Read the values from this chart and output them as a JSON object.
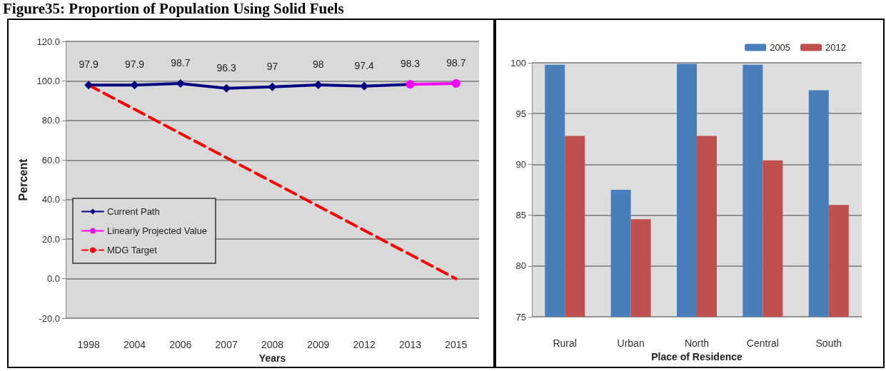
{
  "chart_data": [
    {
      "type": "line",
      "title": "Figure35: Proportion of Population Using Solid Fuels",
      "xlabel": "Years",
      "ylabel": "Percent",
      "categories": [
        "1998",
        "2004",
        "2006",
        "2007",
        "2008",
        "2009",
        "2012",
        "2013",
        "2015"
      ],
      "series": [
        {
          "name": "Current Path",
          "color": "#000080",
          "marker": "diamond",
          "line_style": "solid",
          "values": [
            97.9,
            97.9,
            98.7,
            96.3,
            97,
            98,
            97.4,
            98.3,
            null
          ],
          "value_labels": [
            "97.9",
            "97.9",
            "98.7",
            "96.3",
            "97",
            "98",
            "97.4",
            "98.3",
            null
          ]
        },
        {
          "name": "Linearly Projected Value",
          "color": "#ff00ff",
          "marker": "circle",
          "line_style": "solid",
          "values": [
            null,
            null,
            null,
            null,
            null,
            null,
            null,
            98.3,
            98.7
          ],
          "value_labels": [
            null,
            null,
            null,
            null,
            null,
            null,
            null,
            null,
            "98.7"
          ]
        },
        {
          "name": "MDG Target",
          "color": "#ff0000",
          "marker": "none",
          "line_style": "dashed",
          "values": [
            97.9,
            null,
            null,
            null,
            null,
            null,
            null,
            null,
            0
          ]
        }
      ],
      "ylim": [
        -20,
        120
      ],
      "yticks": [
        {
          "value": -20,
          "label": "-20.0"
        },
        {
          "value": 0,
          "label": "0.0"
        },
        {
          "value": 20,
          "label": "20.0"
        },
        {
          "value": 40,
          "label": "40.0"
        },
        {
          "value": 60,
          "label": "60.0"
        },
        {
          "value": 80,
          "label": "80.0"
        },
        {
          "value": 100,
          "label": "100.0"
        },
        {
          "value": 120,
          "label": "120.0"
        }
      ],
      "grid": "y",
      "legend": "left"
    },
    {
      "type": "bar",
      "xlabel": "Place of Residence",
      "categories": [
        "Rural",
        "Urban",
        "North",
        "Central",
        "South"
      ],
      "series": [
        {
          "name": "2005",
          "color": "#4a7ebb",
          "values": [
            99.8,
            87.5,
            99.9,
            99.8,
            97.3
          ]
        },
        {
          "name": "2012",
          "color": "#c0504d",
          "values": [
            92.8,
            84.6,
            92.8,
            90.4,
            86.0
          ]
        }
      ],
      "ylim": [
        75,
        100
      ],
      "yticks": [
        75,
        80,
        85,
        90,
        95,
        100
      ],
      "grid": "y",
      "legend": "top right"
    }
  ]
}
